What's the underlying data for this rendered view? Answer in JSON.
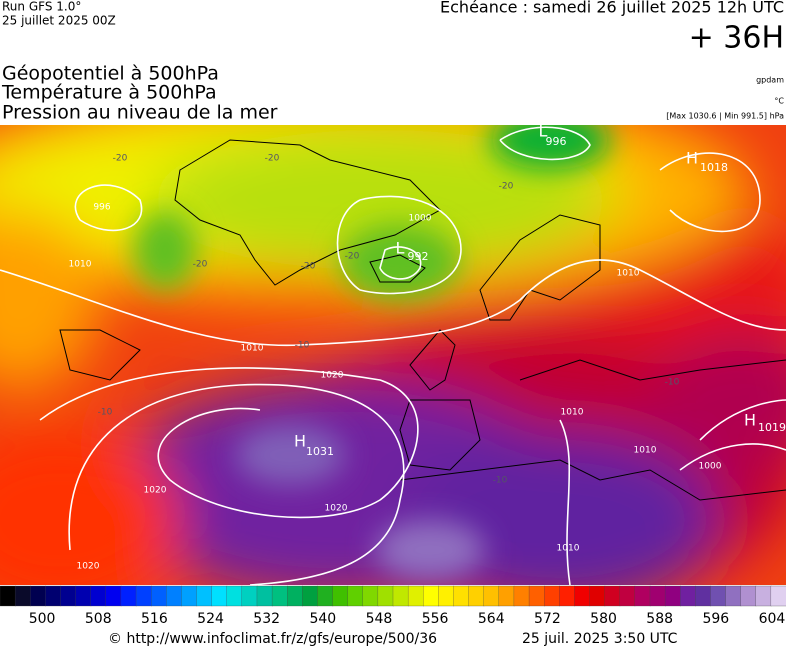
{
  "header": {
    "run": "Run GFS 1.0°",
    "run_date": "25 juillet 2025 00Z",
    "echeance": "Echéance : samedi 26 juillet 2025 12h UTC",
    "lead": "+ 36H",
    "titles": [
      "Géopotentiel à 500hPa",
      "Température à 500hPa",
      "Pression au niveau de la mer"
    ],
    "unit_gpdam": "gpdam",
    "unit_temp": "°C",
    "pressure_range": "[Max 1030.6 | Min 991.5] hPa"
  },
  "map": {
    "labels": [
      "H",
      "1031",
      "L",
      "992",
      "L",
      "996",
      "H",
      "1018",
      "H",
      "1019",
      "1000",
      "996",
      "1010",
      "1000",
      "1010",
      "1020",
      "1020",
      "1020",
      "1020",
      "1010",
      "1010",
      "1010",
      "1010",
      "-20",
      "-20",
      "-20",
      "-20",
      "-20",
      "-20",
      "-10",
      "-10",
      "-10",
      "-10"
    ]
  },
  "colorbar": {
    "range": [
      494,
      606
    ],
    "colors": [
      "#000000",
      "#0a0a2a",
      "#000050",
      "#000070",
      "#000090",
      "#0000b0",
      "#0000d0",
      "#0000f0",
      "#0020ff",
      "#0040ff",
      "#0060ff",
      "#0080ff",
      "#00a0ff",
      "#00c0ff",
      "#00e0ff",
      "#00e0e0",
      "#00d0c0",
      "#00c0a0",
      "#00c080",
      "#00b060",
      "#00a040",
      "#20b020",
      "#40c000",
      "#60d000",
      "#80d800",
      "#a0e000",
      "#c0e800",
      "#e0f000",
      "#ffff00",
      "#fff000",
      "#ffe000",
      "#ffd000",
      "#ffc000",
      "#ffa000",
      "#ff8000",
      "#ff6000",
      "#ff4000",
      "#ff2000",
      "#f00000",
      "#e00000",
      "#d00020",
      "#c00040",
      "#b00060",
      "#a00070",
      "#900080",
      "#7020a0",
      "#6030a0",
      "#7050b0",
      "#9070c0",
      "#b090d0",
      "#c8b0e0",
      "#e0d0f0"
    ],
    "labels": [
      500,
      508,
      516,
      524,
      532,
      540,
      548,
      556,
      564,
      572,
      580,
      588,
      596,
      604
    ]
  },
  "footer": {
    "url": "© http://www.infoclimat.fr/z/gfs/europe/500/36",
    "date": "25 juil. 2025  3:50 UTC"
  }
}
